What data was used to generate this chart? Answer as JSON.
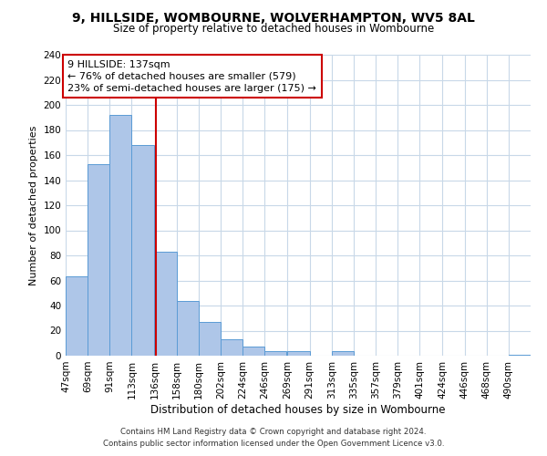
{
  "title": "9, HILLSIDE, WOMBOURNE, WOLVERHAMPTON, WV5 8AL",
  "subtitle": "Size of property relative to detached houses in Wombourne",
  "xlabel": "Distribution of detached houses by size in Wombourne",
  "ylabel": "Number of detached properties",
  "bin_labels": [
    "47sqm",
    "69sqm",
    "91sqm",
    "113sqm",
    "136sqm",
    "158sqm",
    "180sqm",
    "202sqm",
    "224sqm",
    "246sqm",
    "269sqm",
    "291sqm",
    "313sqm",
    "335sqm",
    "357sqm",
    "379sqm",
    "401sqm",
    "424sqm",
    "446sqm",
    "468sqm",
    "490sqm"
  ],
  "bin_edges": [
    47,
    69,
    91,
    113,
    136,
    158,
    180,
    202,
    224,
    246,
    269,
    291,
    313,
    335,
    357,
    379,
    401,
    424,
    446,
    468,
    490
  ],
  "bar_heights": [
    63,
    153,
    192,
    168,
    83,
    44,
    27,
    13,
    7,
    4,
    4,
    0,
    4,
    0,
    0,
    0,
    0,
    0,
    0,
    0,
    1
  ],
  "bar_color": "#aec6e8",
  "bar_edge_color": "#5b9bd5",
  "property_size": 137,
  "vline_color": "#cc0000",
  "annotation_line1": "9 HILLSIDE: 137sqm",
  "annotation_line2": "← 76% of detached houses are smaller (579)",
  "annotation_line3": "23% of semi-detached houses are larger (175) →",
  "annotation_box_edgecolor": "#cc0000",
  "ylim": [
    0,
    240
  ],
  "yticks": [
    0,
    20,
    40,
    60,
    80,
    100,
    120,
    140,
    160,
    180,
    200,
    220,
    240
  ],
  "footer_line1": "Contains HM Land Registry data © Crown copyright and database right 2024.",
  "footer_line2": "Contains public sector information licensed under the Open Government Licence v3.0.",
  "background_color": "#ffffff",
  "grid_color": "#c8d8e8"
}
